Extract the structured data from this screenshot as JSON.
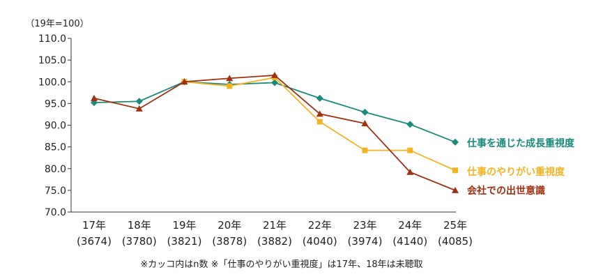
{
  "chart_data": {
    "type": "line",
    "ylabel": "（19年=100）",
    "ylim": [
      70,
      110
    ],
    "y_ticks": [
      "110.0",
      "105.0",
      "100.0",
      "95.0",
      "90.0",
      "85.0",
      "80.0",
      "75.0",
      "70.0"
    ],
    "categories": [
      "17年",
      "18年",
      "19年",
      "20年",
      "21年",
      "22年",
      "23年",
      "24年",
      "25年"
    ],
    "sample_sizes": [
      "(3674)",
      "(3780)",
      "(3821)",
      "(3878)",
      "(3882)",
      "(4040)",
      "(3974)",
      "(4140)",
      "(4085)"
    ],
    "footnote": "※カッコ内はn数 ※「仕事のやりがい重視度」は17年、18年は未聴取",
    "grid": false,
    "legend": "right-inline",
    "series": [
      {
        "name": "仕事を通じた成長重視度",
        "color": "#1a8a7a",
        "marker": "diamond",
        "values": [
          95.2,
          95.5,
          100.0,
          99.4,
          99.8,
          96.2,
          93.0,
          90.2,
          86.1
        ]
      },
      {
        "name": "仕事のやりがい重視度",
        "color": "#f5b324",
        "marker": "square",
        "values": [
          null,
          null,
          100.0,
          99.0,
          101.0,
          90.8,
          84.2,
          84.2,
          79.6
        ]
      },
      {
        "name": "会社での出世意識",
        "color": "#a03010",
        "marker": "triangle",
        "values": [
          96.2,
          93.8,
          100.0,
          100.8,
          101.5,
          92.6,
          90.4,
          79.2,
          75.0
        ]
      }
    ]
  }
}
